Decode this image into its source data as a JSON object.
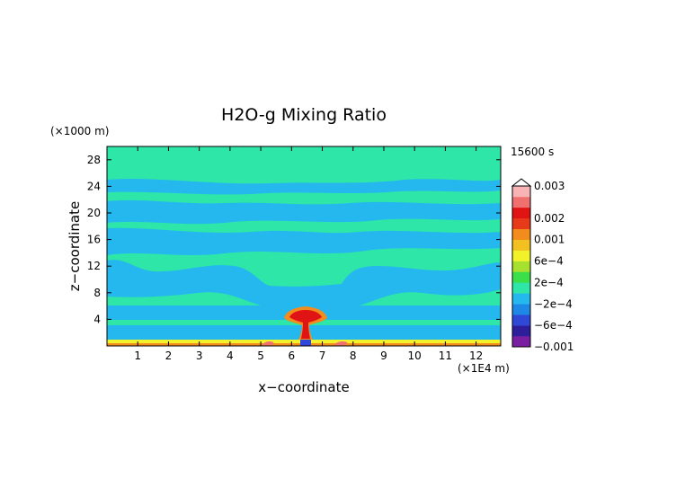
{
  "chart_data": {
    "type": "heatmap",
    "title": "H2O-g Mixing Ratio",
    "xlabel": "x−coordinate",
    "ylabel": "z−coordinate",
    "x_unit": "(×1E4 m)",
    "y_unit": "(×1000 m)",
    "time_label": "15600 s",
    "xlim": [
      0,
      12.8
    ],
    "ylim": [
      0,
      30
    ],
    "x_ticks": [
      1,
      2,
      3,
      4,
      5,
      6,
      7,
      8,
      9,
      10,
      11,
      12
    ],
    "y_ticks": [
      4,
      8,
      12,
      16,
      20,
      24,
      28
    ],
    "colorbar": {
      "levels": [
        -0.001,
        -0.0008,
        -0.0006,
        -0.0004,
        -0.0002,
        0,
        0.0002,
        0.0004,
        0.0006,
        0.0008,
        0.001,
        0.0015,
        0.002,
        0.0025,
        0.003
      ],
      "colors": [
        "#7B1FA2",
        "#2E1E9C",
        "#2F49D6",
        "#1E88E5",
        "#25B8EE",
        "#2EE6A8",
        "#3ADF4A",
        "#A8E030",
        "#F2F22A",
        "#F2C020",
        "#F28C1C",
        "#E63A1A",
        "#E01414",
        "#F07070",
        "#F8B4B4"
      ],
      "tick_labels": [
        {
          "label": "0.003",
          "value": 0.003
        },
        {
          "label": "0.002",
          "value": 0.002
        },
        {
          "label": "0.001",
          "value": 0.001
        },
        {
          "label": "6e−4",
          "value": 0.0006
        },
        {
          "label": "2e−4",
          "value": 0.0002
        },
        {
          "label": "−2e−4",
          "value": -0.0002
        },
        {
          "label": "−6e−4",
          "value": -0.0006
        },
        {
          "label": "−0.001",
          "value": -0.001
        }
      ]
    },
    "field_colors": {
      "background_green": "#2EE6A8",
      "negative_blue": "#25B8EE",
      "surface_yellow": "#F2F22A",
      "surface_orange": "#F28C1C",
      "plume_red": "#E01414",
      "plume_pink": "#F07070",
      "deep_blue": "#2F49D6"
    }
  }
}
